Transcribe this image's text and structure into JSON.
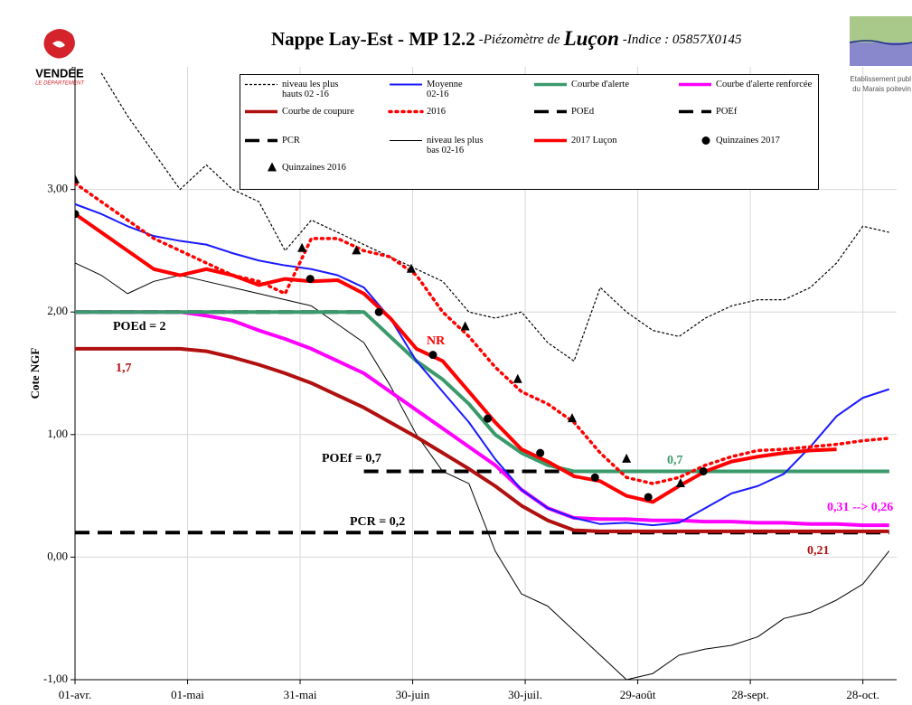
{
  "header": {
    "title_main": "Nappe Lay-Est - MP 12.2",
    "title_italic": "-Piézomètre de",
    "title_place": "Luçon",
    "title_index": "-Indice : 05857X0145",
    "logo_left": "VENDÉE",
    "logo_left_sub": "LE DÉPARTEMENT",
    "logo_right_1": "Etablissement publ",
    "logo_right_2": "du Marais poitevin"
  },
  "chart_data": {
    "type": "line",
    "ylabel": "Cote NGF",
    "xlim": [
      0,
      219
    ],
    "ylim": [
      -1,
      4
    ],
    "grid": true,
    "xticks": [
      {
        "value": 0,
        "label": "01-avr."
      },
      {
        "value": 30,
        "label": "01-mai"
      },
      {
        "value": 60,
        "label": "31-mai"
      },
      {
        "value": 90,
        "label": "30-juin"
      },
      {
        "value": 120,
        "label": "30-juil."
      },
      {
        "value": 150,
        "label": "29-août"
      },
      {
        "value": 180,
        "label": "28-sept."
      },
      {
        "value": 210,
        "label": "28-oct."
      }
    ],
    "yticks": [
      {
        "value": 3,
        "label": "3,00"
      },
      {
        "value": 2,
        "label": "2,00"
      },
      {
        "value": 1,
        "label": "1,00"
      },
      {
        "value": 0,
        "label": "0,00"
      },
      {
        "value": -1,
        "label": "-1,00"
      }
    ],
    "x": [
      0,
      7,
      14,
      21,
      28,
      35,
      42,
      49,
      56,
      63,
      70,
      77,
      84,
      91,
      98,
      105,
      112,
      119,
      126,
      133,
      140,
      147,
      154,
      161,
      168,
      175,
      182,
      189,
      196,
      203,
      210,
      217
    ],
    "series": [
      {
        "name": "niveau les plus\nhauts 02 -16",
        "color": "#000000",
        "style": "short-dash",
        "values": [
          null,
          3.95,
          3.6,
          3.3,
          3.0,
          3.2,
          3.0,
          2.9,
          2.5,
          2.75,
          2.65,
          2.55,
          2.45,
          2.35,
          2.25,
          2.0,
          1.95,
          2.0,
          1.75,
          1.6,
          2.2,
          2.0,
          1.85,
          1.8,
          1.95,
          2.05,
          2.1,
          2.1,
          2.2,
          2.4,
          2.7,
          2.65
        ]
      },
      {
        "name": "Moyenne\n02-16",
        "color": "#1a1aff",
        "style": "solid",
        "values": [
          2.88,
          2.8,
          2.7,
          2.62,
          2.58,
          2.55,
          2.48,
          2.42,
          2.38,
          2.35,
          2.3,
          2.2,
          1.95,
          1.6,
          1.35,
          1.1,
          0.8,
          0.55,
          0.4,
          0.32,
          0.27,
          0.28,
          0.26,
          0.28,
          0.4,
          0.52,
          0.58,
          0.68,
          0.9,
          1.15,
          1.3,
          1.37
        ]
      },
      {
        "name": "Courbe d'alerte",
        "color": "#3b9a6c",
        "style": "thick",
        "values": [
          2.0,
          2.0,
          2.0,
          2.0,
          2.0,
          2.0,
          2.0,
          2.0,
          2.0,
          2.0,
          2.0,
          2.0,
          1.8,
          1.6,
          1.45,
          1.25,
          1.0,
          0.85,
          0.75,
          0.7,
          0.7,
          0.7,
          0.7,
          0.7,
          0.7,
          0.7,
          0.7,
          0.7,
          0.7,
          0.7,
          0.7,
          0.7
        ]
      },
      {
        "name": "Courbe d'alerte renforcée",
        "color": "#ff00ff",
        "style": "thick",
        "values": [
          2.0,
          2.0,
          2.0,
          2.0,
          2.0,
          1.97,
          1.93,
          1.85,
          1.78,
          1.7,
          1.6,
          1.5,
          1.35,
          1.2,
          1.05,
          0.9,
          0.75,
          0.55,
          0.4,
          0.32,
          0.31,
          0.31,
          0.3,
          0.3,
          0.29,
          0.29,
          0.28,
          0.28,
          0.27,
          0.27,
          0.26,
          0.26
        ]
      },
      {
        "name": "Courbe de coupure",
        "color": "#b01010",
        "style": "thick",
        "values": [
          1.7,
          1.7,
          1.7,
          1.7,
          1.7,
          1.68,
          1.63,
          1.57,
          1.5,
          1.42,
          1.32,
          1.22,
          1.1,
          0.98,
          0.85,
          0.72,
          0.58,
          0.42,
          0.3,
          0.22,
          0.21,
          0.21,
          0.21,
          0.21,
          0.21,
          0.21,
          0.21,
          0.21,
          0.21,
          0.21,
          0.21,
          0.21
        ]
      },
      {
        "name": "2016",
        "color": "#ff0000",
        "style": "dot",
        "values": [
          3.05,
          2.9,
          2.75,
          2.6,
          2.5,
          2.4,
          2.3,
          2.25,
          2.15,
          2.6,
          2.6,
          2.5,
          2.45,
          2.3,
          2.0,
          1.8,
          1.55,
          1.35,
          1.25,
          1.1,
          0.85,
          0.65,
          0.6,
          0.65,
          0.75,
          0.82,
          0.87,
          0.88,
          0.9,
          0.92,
          0.95,
          0.97
        ]
      },
      {
        "name": "POEd",
        "color": "#000000",
        "style": "long-dash",
        "values": [
          2.0,
          2.0,
          2.0,
          2.0,
          2.0,
          2.0,
          2.0,
          2.0,
          2.0,
          2.0,
          2.0,
          2.0,
          null,
          null,
          null,
          null,
          null,
          null,
          null,
          null,
          null,
          null,
          null,
          null,
          null,
          null,
          null,
          null,
          null,
          null,
          null,
          null
        ]
      },
      {
        "name": "POEf",
        "color": "#000000",
        "style": "long-dash",
        "values": [
          null,
          null,
          null,
          null,
          null,
          null,
          null,
          null,
          null,
          null,
          null,
          0.7,
          0.7,
          0.7,
          0.7,
          0.7,
          0.7,
          0.7,
          0.7,
          0.7,
          0.7,
          0.7,
          0.7,
          0.7,
          0.7,
          0.7,
          0.7,
          0.7,
          0.7,
          0.7,
          0.7,
          0.7
        ]
      },
      {
        "name": "PCR",
        "color": "#000000",
        "style": "long-dash",
        "values": [
          0.2,
          0.2,
          0.2,
          0.2,
          0.2,
          0.2,
          0.2,
          0.2,
          0.2,
          0.2,
          0.2,
          0.2,
          0.2,
          0.2,
          0.2,
          0.2,
          0.2,
          0.2,
          0.2,
          0.2,
          0.2,
          0.2,
          0.2,
          0.2,
          0.2,
          0.2,
          0.2,
          0.2,
          0.2,
          0.2,
          0.2,
          0.2
        ]
      },
      {
        "name": "niveau les plus\nbas 02-16",
        "color": "#000000",
        "style": "thin",
        "values": [
          2.4,
          2.3,
          2.15,
          2.25,
          2.3,
          2.25,
          2.2,
          2.15,
          2.1,
          2.05,
          1.9,
          1.75,
          1.4,
          1.0,
          0.7,
          0.6,
          0.05,
          -0.3,
          -0.4,
          -0.6,
          -0.8,
          -1.0,
          -0.95,
          -0.8,
          -0.75,
          -0.72,
          -0.65,
          -0.5,
          -0.45,
          -0.35,
          -0.22,
          0.05
        ]
      },
      {
        "name": "2017 Luçon",
        "color": "#ff0000",
        "style": "thick",
        "values": [
          2.8,
          2.65,
          2.5,
          2.35,
          2.3,
          2.35,
          2.3,
          2.22,
          2.27,
          2.25,
          2.26,
          2.15,
          1.95,
          1.7,
          1.6,
          1.35,
          1.1,
          0.88,
          0.78,
          0.66,
          0.62,
          0.5,
          0.45,
          0.58,
          0.7,
          0.78,
          0.82,
          0.85,
          0.87,
          0.88,
          null,
          null
        ]
      },
      {
        "name": "Quinzaines 2017",
        "color": "#000000",
        "marker": "circle",
        "x": [
          0,
          62.7,
          81,
          95.4,
          110,
          124,
          138.6,
          152.8,
          167.5
        ],
        "values": [
          2.8,
          2.27,
          2.0,
          1.65,
          1.13,
          0.85,
          0.65,
          0.49,
          0.7
        ]
      },
      {
        "name": "Quinzaines 2016",
        "color": "#000000",
        "marker": "triangle",
        "x": [
          0,
          60.5,
          75,
          89.6,
          104,
          118,
          132.5,
          147,
          161.4
        ],
        "values": [
          3.08,
          2.52,
          2.5,
          2.35,
          1.88,
          1.45,
          1.13,
          0.8,
          0.6
        ]
      }
    ],
    "annotations": [
      {
        "text": "POEd = 2",
        "color": "#000000"
      },
      {
        "text": "1,7",
        "color": "#b01010"
      },
      {
        "text": "NR",
        "color": "#ff0000"
      },
      {
        "text": "POEf = 0,7",
        "color": "#000000"
      },
      {
        "text": "0,7",
        "color": "#3b9a6c"
      },
      {
        "text": "0,31 --> 0,26",
        "color": "#ff00ff"
      },
      {
        "text": "PCR = 0,2",
        "color": "#000000"
      },
      {
        "text": "0,21",
        "color": "#b01010"
      }
    ]
  }
}
